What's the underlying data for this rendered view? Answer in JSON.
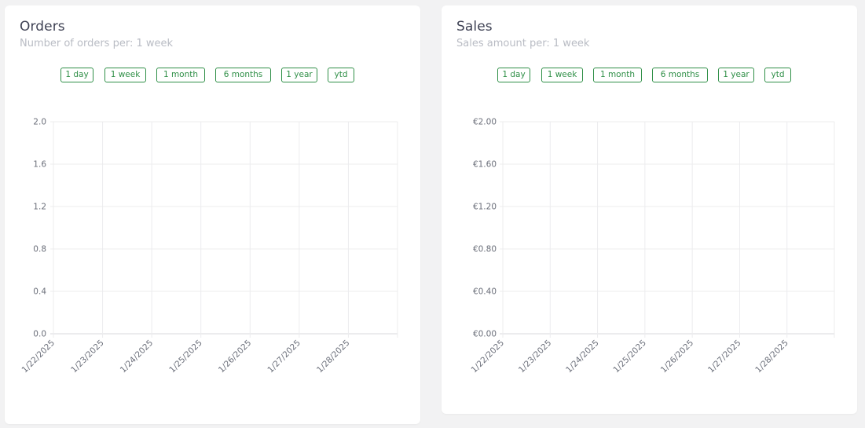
{
  "colors": {
    "accent": "#2f8f47",
    "grid": "#ececee",
    "title": "#3f4254",
    "subtitle": "#b9bcc4",
    "tick": "#6b6f7a"
  },
  "panels": [
    {
      "id": "orders",
      "title": "Orders",
      "subtitle": "Number of orders per: 1 week",
      "ranges": [
        "1 day",
        "1 week",
        "1 month",
        "6 months",
        "1 year",
        "ytd"
      ]
    },
    {
      "id": "sales",
      "title": "Sales",
      "subtitle": "Sales amount per: 1 week",
      "ranges": [
        "1 day",
        "1 week",
        "1 month",
        "6 months",
        "1 year",
        "ytd"
      ]
    }
  ],
  "chart_data": [
    {
      "type": "line",
      "title": "Orders",
      "x": [
        "1/22/2025",
        "1/23/2025",
        "1/24/2025",
        "1/25/2025",
        "1/26/2025",
        "1/27/2025",
        "1/28/2025"
      ],
      "series": [],
      "y_ticks": [
        "0.0",
        "0.4",
        "0.8",
        "1.2",
        "1.6",
        "2.0"
      ],
      "ylim": [
        0,
        2
      ],
      "grid": true
    },
    {
      "type": "line",
      "title": "Sales",
      "x": [
        "1/22/2025",
        "1/23/2025",
        "1/24/2025",
        "1/25/2025",
        "1/26/2025",
        "1/27/2025",
        "1/28/2025"
      ],
      "series": [],
      "y_ticks": [
        "€0.00",
        "€0.40",
        "€0.80",
        "€1.20",
        "€1.60",
        "€2.00"
      ],
      "ylim": [
        0,
        2
      ],
      "grid": true
    }
  ]
}
